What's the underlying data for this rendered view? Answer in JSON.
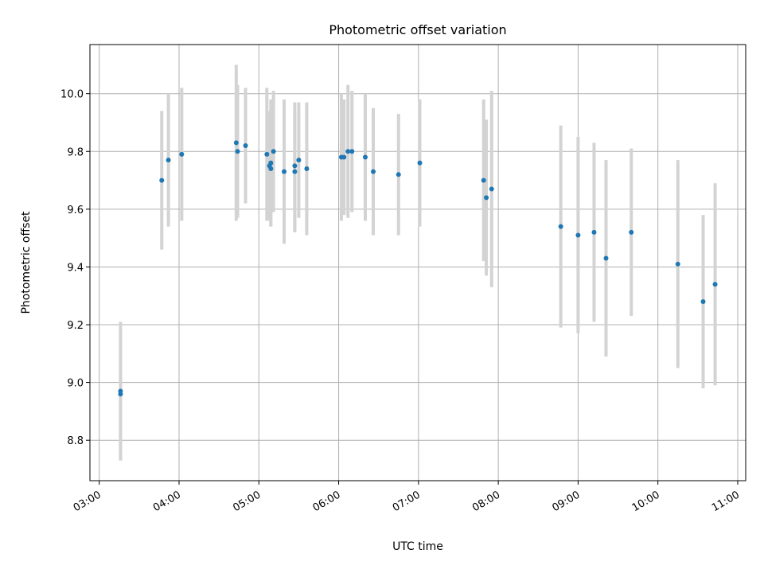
{
  "chart_data": {
    "type": "scatter",
    "title": "Photometric offset variation",
    "xlabel": "UTC time",
    "ylabel": "Photometric offset",
    "xlim": [
      "02:53",
      "11:06"
    ],
    "ylim": [
      8.66,
      10.17
    ],
    "x_ticks": [
      "03:00",
      "04:00",
      "05:00",
      "06:00",
      "07:00",
      "08:00",
      "09:00",
      "10:00",
      "11:00"
    ],
    "y_ticks": [
      "8.8",
      "9.0",
      "9.2",
      "9.4",
      "9.6",
      "9.8",
      "10.0"
    ],
    "grid": true,
    "colors": {
      "points": "#1f77b4",
      "error_bars": "#d3d3d3",
      "grid": "#b0b0b0"
    },
    "series": [
      {
        "points": [
          {
            "x": "03:16",
            "y": 8.97,
            "err": 0.24
          },
          {
            "x": "03:16",
            "y": 8.96,
            "err": 0.23
          },
          {
            "x": "03:47",
            "y": 9.7,
            "err": 0.24
          },
          {
            "x": "03:52",
            "y": 9.77,
            "err": 0.23
          },
          {
            "x": "04:02",
            "y": 9.79,
            "err": 0.23
          },
          {
            "x": "04:43",
            "y": 9.83,
            "err": 0.27
          },
          {
            "x": "04:44",
            "y": 9.8,
            "err": 0.23
          },
          {
            "x": "04:50",
            "y": 9.82,
            "err": 0.2
          },
          {
            "x": "05:06",
            "y": 9.79,
            "err": 0.23
          },
          {
            "x": "05:08",
            "y": 9.75,
            "err": 0.19
          },
          {
            "x": "05:09",
            "y": 9.74,
            "err": 0.2
          },
          {
            "x": "05:09",
            "y": 9.76,
            "err": 0.22
          },
          {
            "x": "05:11",
            "y": 9.8,
            "err": 0.21
          },
          {
            "x": "05:19",
            "y": 9.73,
            "err": 0.25
          },
          {
            "x": "05:27",
            "y": 9.73,
            "err": 0.21
          },
          {
            "x": "05:27",
            "y": 9.75,
            "err": 0.22
          },
          {
            "x": "05:30",
            "y": 9.77,
            "err": 0.2
          },
          {
            "x": "05:36",
            "y": 9.74,
            "err": 0.23
          },
          {
            "x": "06:02",
            "y": 9.78,
            "err": 0.22
          },
          {
            "x": "06:04",
            "y": 9.78,
            "err": 0.2
          },
          {
            "x": "06:07",
            "y": 9.8,
            "err": 0.23
          },
          {
            "x": "06:10",
            "y": 9.8,
            "err": 0.21
          },
          {
            "x": "06:20",
            "y": 9.78,
            "err": 0.22
          },
          {
            "x": "06:26",
            "y": 9.73,
            "err": 0.22
          },
          {
            "x": "06:45",
            "y": 9.72,
            "err": 0.21
          },
          {
            "x": "07:01",
            "y": 9.76,
            "err": 0.22
          },
          {
            "x": "07:49",
            "y": 9.7,
            "err": 0.28
          },
          {
            "x": "07:51",
            "y": 9.64,
            "err": 0.27
          },
          {
            "x": "07:55",
            "y": 9.67,
            "err": 0.34
          },
          {
            "x": "08:47",
            "y": 9.54,
            "err": 0.35
          },
          {
            "x": "09:00",
            "y": 9.51,
            "err": 0.34
          },
          {
            "x": "09:12",
            "y": 9.52,
            "err": 0.31
          },
          {
            "x": "09:21",
            "y": 9.43,
            "err": 0.34
          },
          {
            "x": "09:40",
            "y": 9.52,
            "err": 0.29
          },
          {
            "x": "10:15",
            "y": 9.41,
            "err": 0.36
          },
          {
            "x": "10:34",
            "y": 9.28,
            "err": 0.3
          },
          {
            "x": "10:43",
            "y": 9.34,
            "err": 0.35
          }
        ]
      }
    ]
  }
}
